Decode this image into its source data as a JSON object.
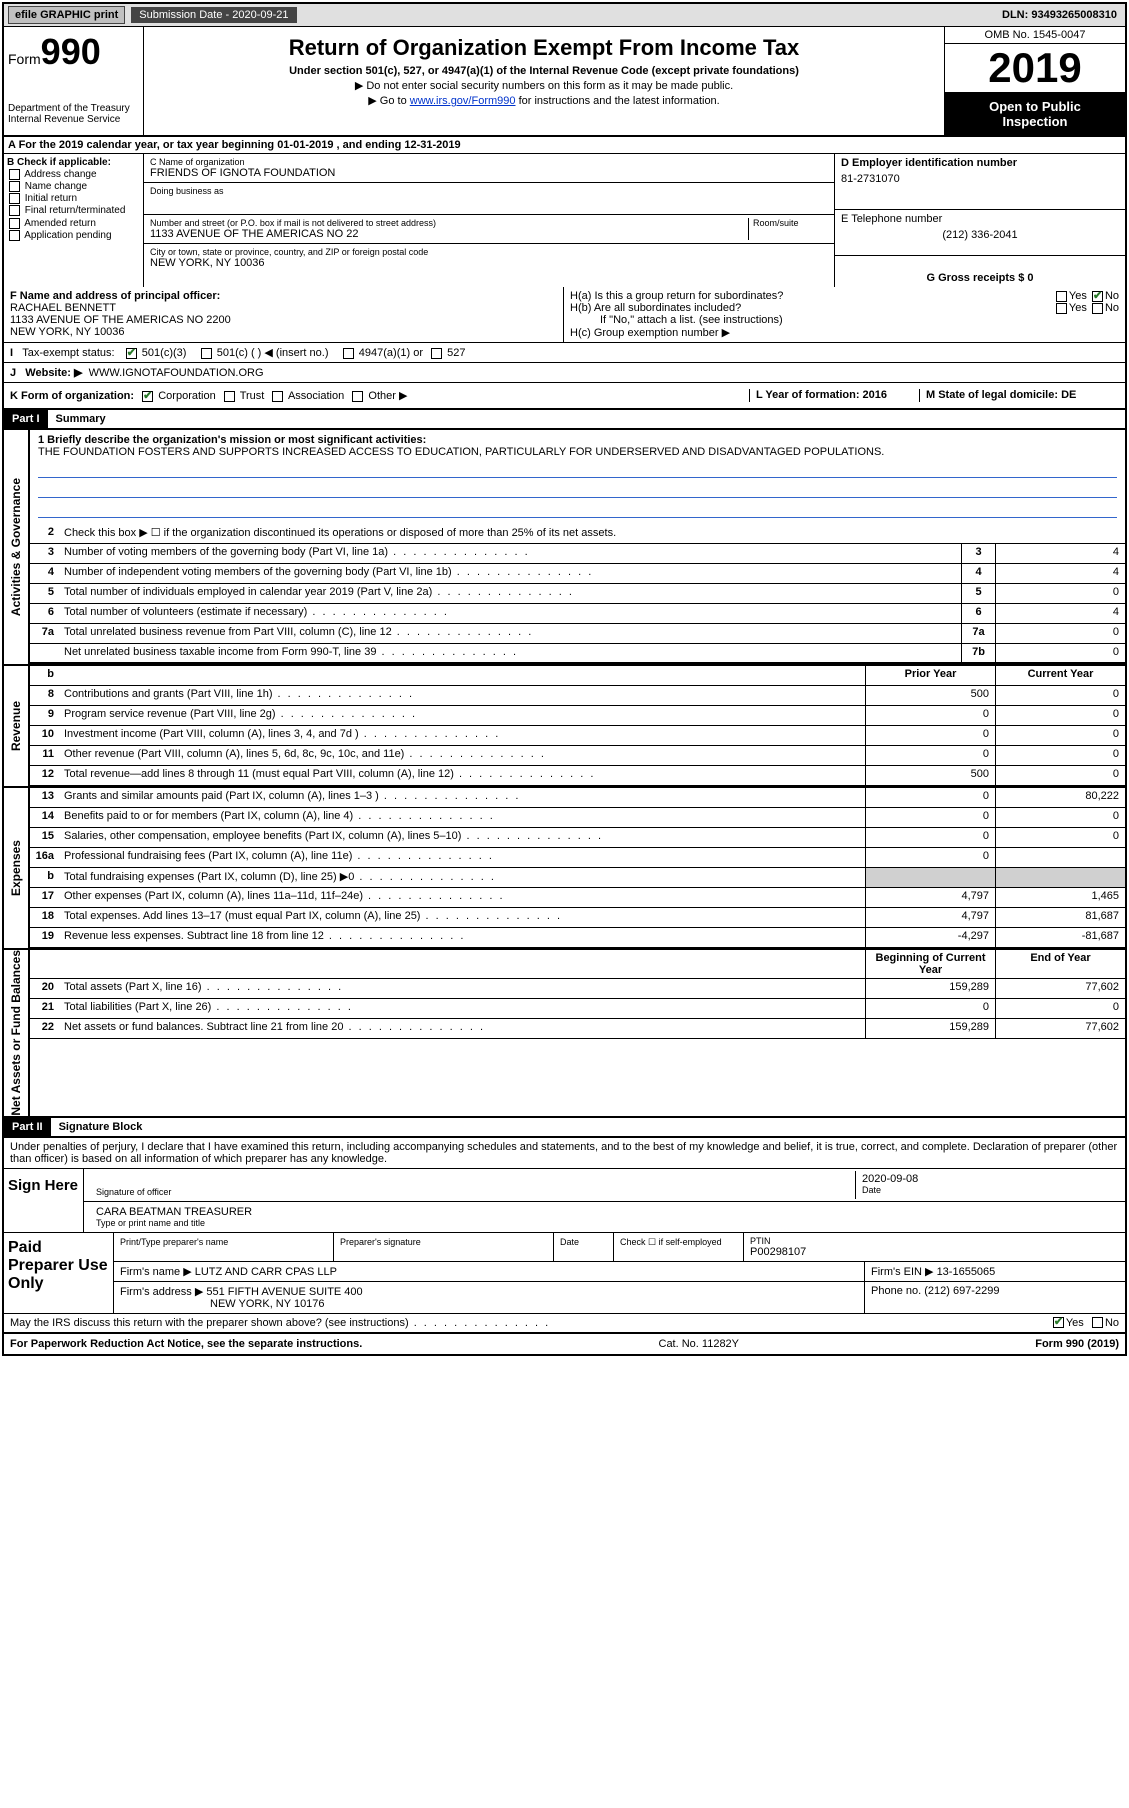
{
  "topbar": {
    "efile": "efile GRAPHIC print",
    "subdate_label": "Submission Date - 2020-09-21",
    "dln": "DLN: 93493265008310"
  },
  "header": {
    "form_label": "Form",
    "form_no": "990",
    "dept": "Department of the Treasury",
    "irs": "Internal Revenue Service",
    "title": "Return of Organization Exempt From Income Tax",
    "sub": "Under section 501(c), 527, or 4947(a)(1) of the Internal Revenue Code (except private foundations)",
    "note1": "▶ Do not enter social security numbers on this form as it may be made public.",
    "note2_prefix": "▶ Go to ",
    "note2_link": "www.irs.gov/Form990",
    "note2_suffix": " for instructions and the latest information.",
    "omb": "OMB No. 1545-0047",
    "year": "2019",
    "inspect1": "Open to Public",
    "inspect2": "Inspection"
  },
  "taxyear": "A For the 2019 calendar year, or tax year beginning 01-01-2019    , and ending 12-31-2019",
  "b": {
    "label": "B Check if applicable:",
    "opts": [
      "Address change",
      "Name change",
      "Initial return",
      "Final return/terminated",
      "Amended return",
      "Application pending"
    ]
  },
  "c": {
    "name_label": "C Name of organization",
    "name": "FRIENDS OF IGNOTA FOUNDATION",
    "dba_label": "Doing business as",
    "addr_label": "Number and street (or P.O. box if mail is not delivered to street address)",
    "room_label": "Room/suite",
    "addr": "1133 AVENUE OF THE AMERICAS NO 22",
    "city_label": "City or town, state or province, country, and ZIP or foreign postal code",
    "city": "NEW YORK, NY  10036"
  },
  "d": {
    "ein_label": "D Employer identification number",
    "ein": "81-2731070",
    "tel_label": "E Telephone number",
    "tel": "(212) 336-2041",
    "gross_label": "G Gross receipts $ 0"
  },
  "f": {
    "label": "F  Name and address of principal officer:",
    "name": "RACHAEL BENNETT",
    "addr1": "1133 AVENUE OF THE AMERICAS NO 2200",
    "addr2": "NEW YORK, NY  10036"
  },
  "h": {
    "a": "H(a)  Is this a group return for subordinates?",
    "b": "H(b)  Are all subordinates included?",
    "b_note": "If \"No,\" attach a list. (see instructions)",
    "c": "H(c)  Group exemption number ▶",
    "yes": "Yes",
    "no": "No"
  },
  "i": {
    "label": "Tax-exempt status:",
    "opts": [
      "501(c)(3)",
      "501(c) (   ) ◀ (insert no.)",
      "4947(a)(1) or",
      "527"
    ]
  },
  "j": {
    "label": "Website: ▶",
    "val": "WWW.IGNOTAFOUNDATION.ORG"
  },
  "k": {
    "label": "K Form of organization:",
    "opts": [
      "Corporation",
      "Trust",
      "Association",
      "Other ▶"
    ]
  },
  "l": {
    "label": "L Year of formation: 2016"
  },
  "m": {
    "label": "M State of legal domicile: DE"
  },
  "parts": {
    "p1": "Part I",
    "p1_title": "Summary",
    "p2": "Part II",
    "p2_title": "Signature Block"
  },
  "summary": {
    "q1": "1  Briefly describe the organization's mission or most significant activities:",
    "mission": "THE FOUNDATION FOSTERS AND SUPPORTS INCREASED ACCESS TO EDUCATION, PARTICULARLY FOR UNDERSERVED AND DISADVANTAGED POPULATIONS.",
    "q2": "Check this box ▶ ☐ if the organization discontinued its operations or disposed of more than 25% of its net assets."
  },
  "sections": {
    "ag": "Activities & Governance",
    "rev": "Revenue",
    "exp": "Expenses",
    "na": "Net Assets or Fund Balances"
  },
  "lines_single": [
    {
      "n": "3",
      "t": "Number of voting members of the governing body (Part VI, line 1a)",
      "box": "3",
      "v": "4"
    },
    {
      "n": "4",
      "t": "Number of independent voting members of the governing body (Part VI, line 1b)",
      "box": "4",
      "v": "4"
    },
    {
      "n": "5",
      "t": "Total number of individuals employed in calendar year 2019 (Part V, line 2a)",
      "box": "5",
      "v": "0"
    },
    {
      "n": "6",
      "t": "Total number of volunteers (estimate if necessary)",
      "box": "6",
      "v": "4"
    },
    {
      "n": "7a",
      "t": "Total unrelated business revenue from Part VIII, column (C), line 12",
      "box": "7a",
      "v": "0"
    },
    {
      "n": "",
      "t": "Net unrelated business taxable income from Form 990-T, line 39",
      "box": "7b",
      "v": "0"
    }
  ],
  "two_col_hdr": {
    "py": "Prior Year",
    "cy": "Current Year",
    "beg": "Beginning of Current Year",
    "end": "End of Year"
  },
  "rev_lines": [
    {
      "n": "8",
      "t": "Contributions and grants (Part VIII, line 1h)",
      "py": "500",
      "cy": "0"
    },
    {
      "n": "9",
      "t": "Program service revenue (Part VIII, line 2g)",
      "py": "0",
      "cy": "0"
    },
    {
      "n": "10",
      "t": "Investment income (Part VIII, column (A), lines 3, 4, and 7d )",
      "py": "0",
      "cy": "0"
    },
    {
      "n": "11",
      "t": "Other revenue (Part VIII, column (A), lines 5, 6d, 8c, 9c, 10c, and 11e)",
      "py": "0",
      "cy": "0"
    },
    {
      "n": "12",
      "t": "Total revenue—add lines 8 through 11 (must equal Part VIII, column (A), line 12)",
      "py": "500",
      "cy": "0"
    }
  ],
  "exp_lines": [
    {
      "n": "13",
      "t": "Grants and similar amounts paid (Part IX, column (A), lines 1–3 )",
      "py": "0",
      "cy": "80,222"
    },
    {
      "n": "14",
      "t": "Benefits paid to or for members (Part IX, column (A), line 4)",
      "py": "0",
      "cy": "0"
    },
    {
      "n": "15",
      "t": "Salaries, other compensation, employee benefits (Part IX, column (A), lines 5–10)",
      "py": "0",
      "cy": "0"
    },
    {
      "n": "16a",
      "t": "Professional fundraising fees (Part IX, column (A), line 11e)",
      "py": "0",
      "cy": ""
    },
    {
      "n": "b",
      "t": "Total fundraising expenses (Part IX, column (D), line 25) ▶0",
      "py": "grey",
      "cy": "grey"
    },
    {
      "n": "17",
      "t": "Other expenses (Part IX, column (A), lines 11a–11d, 11f–24e)",
      "py": "4,797",
      "cy": "1,465"
    },
    {
      "n": "18",
      "t": "Total expenses. Add lines 13–17 (must equal Part IX, column (A), line 25)",
      "py": "4,797",
      "cy": "81,687"
    },
    {
      "n": "19",
      "t": "Revenue less expenses. Subtract line 18 from line 12",
      "py": "-4,297",
      "cy": "-81,687"
    }
  ],
  "na_lines": [
    {
      "n": "20",
      "t": "Total assets (Part X, line 16)",
      "py": "159,289",
      "cy": "77,602"
    },
    {
      "n": "21",
      "t": "Total liabilities (Part X, line 26)",
      "py": "0",
      "cy": "0"
    },
    {
      "n": "22",
      "t": "Net assets or fund balances. Subtract line 21 from line 20",
      "py": "159,289",
      "cy": "77,602"
    }
  ],
  "sig": {
    "penalty": "Under penalties of perjury, I declare that I have examined this return, including accompanying schedules and statements, and to the best of my knowledge and belief, it is true, correct, and complete. Declaration of preparer (other than officer) is based on all information of which preparer has any knowledge.",
    "sign_here": "Sign Here",
    "sig_officer": "Signature of officer",
    "date": "Date",
    "date_val": "2020-09-08",
    "name_title": "CARA BEATMAN  TREASURER",
    "type_name": "Type or print name and title"
  },
  "prep": {
    "label": "Paid Preparer Use Only",
    "print_name": "Print/Type preparer's name",
    "prep_sig": "Preparer's signature",
    "date": "Date",
    "check": "Check ☐ if self-employed",
    "ptin_label": "PTIN",
    "ptin": "P00298107",
    "firm_label": "Firm's name   ▶",
    "firm": "LUTZ AND CARR CPAS LLP",
    "ein_label": "Firm's EIN ▶",
    "ein": "13-1655065",
    "addr_label": "Firm's address ▶",
    "addr1": "551 FIFTH AVENUE SUITE 400",
    "addr2": "NEW YORK, NY  10176",
    "phone_label": "Phone no.",
    "phone": "(212) 697-2299",
    "discuss": "May the IRS discuss this return with the preparer shown above? (see instructions)"
  },
  "footer": {
    "left": "For Paperwork Reduction Act Notice, see the separate instructions.",
    "mid": "Cat. No. 11282Y",
    "right": "Form 990 (2019)"
  }
}
